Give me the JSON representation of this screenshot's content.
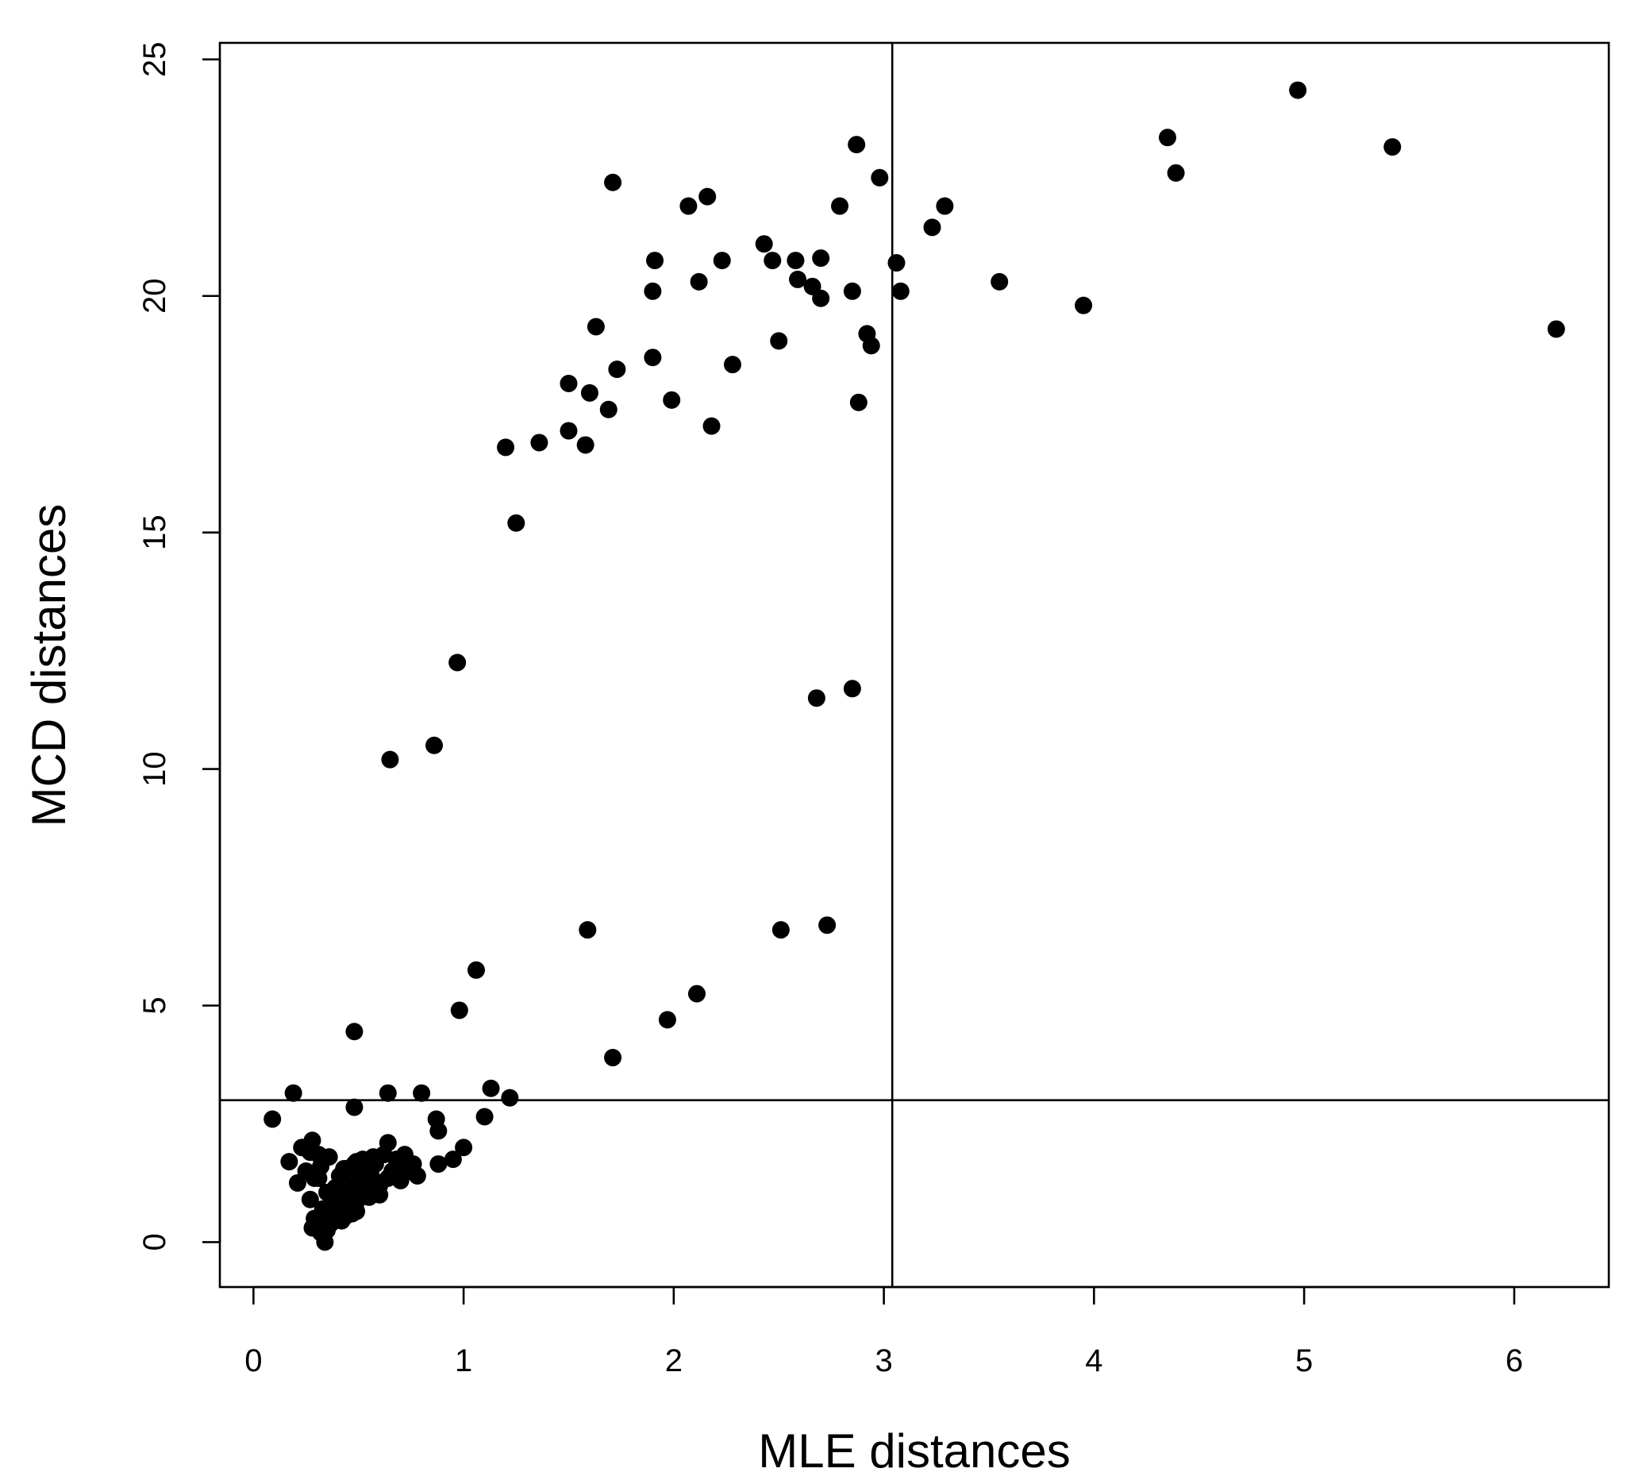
{
  "chart_data": {
    "type": "scatter",
    "title": "",
    "xlabel": "MLE distances",
    "ylabel": "MCD distances",
    "xlim": [
      -0.16,
      6.45
    ],
    "ylim": [
      -0.95,
      25.35
    ],
    "xticks": [
      0,
      1,
      2,
      3,
      4,
      5,
      6
    ],
    "yticks": [
      0,
      5,
      10,
      15,
      20,
      25
    ],
    "grid": false,
    "legend": "none",
    "colors": {
      "points": "#000000",
      "lines": "#000000"
    },
    "reference_lines": {
      "vertical_x": 3.04,
      "horizontal_y": 3.0
    },
    "x": [
      0.09,
      0.17,
      0.19,
      0.21,
      0.23,
      0.25,
      0.27,
      0.28,
      0.29,
      0.3,
      0.31,
      0.32,
      0.33,
      0.34,
      0.35,
      0.36,
      0.37,
      0.38,
      0.39,
      0.4,
      0.41,
      0.42,
      0.43,
      0.44,
      0.45,
      0.46,
      0.47,
      0.48,
      0.49,
      0.5,
      0.52,
      0.54,
      0.55,
      0.56,
      0.57,
      0.58,
      0.6,
      0.62,
      0.64,
      0.66,
      0.68,
      0.7,
      0.72,
      0.74,
      0.76,
      0.78,
      0.31,
      0.33,
      0.35,
      0.38,
      0.4,
      0.42,
      0.44,
      0.47,
      0.5,
      0.53,
      0.27,
      0.29,
      0.3,
      0.32,
      0.36,
      0.39,
      0.43,
      0.46,
      0.49,
      0.52,
      0.56,
      0.6,
      0.64,
      0.69,
      0.48,
      0.49,
      0.64,
      0.8,
      0.87,
      0.88,
      0.95,
      1.0,
      1.1,
      1.13,
      1.22,
      0.88,
      0.48,
      0.65,
      0.86,
      0.97,
      0.98,
      1.06,
      1.2,
      1.25,
      1.36,
      1.5,
      1.5,
      1.58,
      1.6,
      1.63,
      1.69,
      1.71,
      1.73,
      1.9,
      1.9,
      1.91,
      1.97,
      1.99,
      2.07,
      2.11,
      2.12,
      2.16,
      2.18,
      2.23,
      2.28,
      2.43,
      2.47,
      2.5,
      2.58,
      2.59,
      2.66,
      2.7,
      2.7,
      2.79,
      2.85,
      2.87,
      2.88,
      2.92,
      2.94,
      2.98,
      3.06,
      3.08,
      3.23,
      3.29,
      3.55,
      3.95,
      4.35,
      4.39,
      4.97,
      5.42,
      6.2,
      1.59,
      1.71,
      2.51,
      2.73,
      2.68,
      2.85,
      0.28
    ],
    "y": [
      2.6,
      1.7,
      3.15,
      1.25,
      2.0,
      1.5,
      0.9,
      2.15,
      0.5,
      0.3,
      1.85,
      0.2,
      0.7,
      0.0,
      1.05,
      1.8,
      0.4,
      0.8,
      1.15,
      0.55,
      1.4,
      0.45,
      0.9,
      1.55,
      0.7,
      1.2,
      0.6,
      1.65,
      0.85,
      1.3,
      1.75,
      1.0,
      0.95,
      1.4,
      1.8,
      1.65,
      1.2,
      1.85,
      2.1,
      1.5,
      1.75,
      1.3,
      1.85,
      1.5,
      1.65,
      1.4,
      1.35,
      0.55,
      0.25,
      1.0,
      0.65,
      1.25,
      0.55,
      0.95,
      1.45,
      1.15,
      1.9,
      1.35,
      0.45,
      1.6,
      0.75,
      1.05,
      1.55,
      0.85,
      1.7,
      1.3,
      1.6,
      1.0,
      1.35,
      1.55,
      2.85,
      0.65,
      3.15,
      3.15,
      2.6,
      2.35,
      1.75,
      2.0,
      2.65,
      3.25,
      3.05,
      1.65,
      4.45,
      10.2,
      10.5,
      12.25,
      4.9,
      5.75,
      16.8,
      15.2,
      16.9,
      17.15,
      18.15,
      16.85,
      17.95,
      19.35,
      17.6,
      22.4,
      18.45,
      20.1,
      18.7,
      20.75,
      4.7,
      17.8,
      21.9,
      5.25,
      20.3,
      22.1,
      17.25,
      20.75,
      18.55,
      21.1,
      20.75,
      19.05,
      20.75,
      20.35,
      20.2,
      20.8,
      19.95,
      21.9,
      20.1,
      23.2,
      17.75,
      19.2,
      18.95,
      22.5,
      20.7,
      20.1,
      21.45,
      21.9,
      20.3,
      19.8,
      23.35,
      22.6,
      24.35,
      23.15,
      19.3,
      6.6,
      3.9,
      6.6,
      6.7,
      11.5,
      11.7,
      0.3
    ]
  }
}
